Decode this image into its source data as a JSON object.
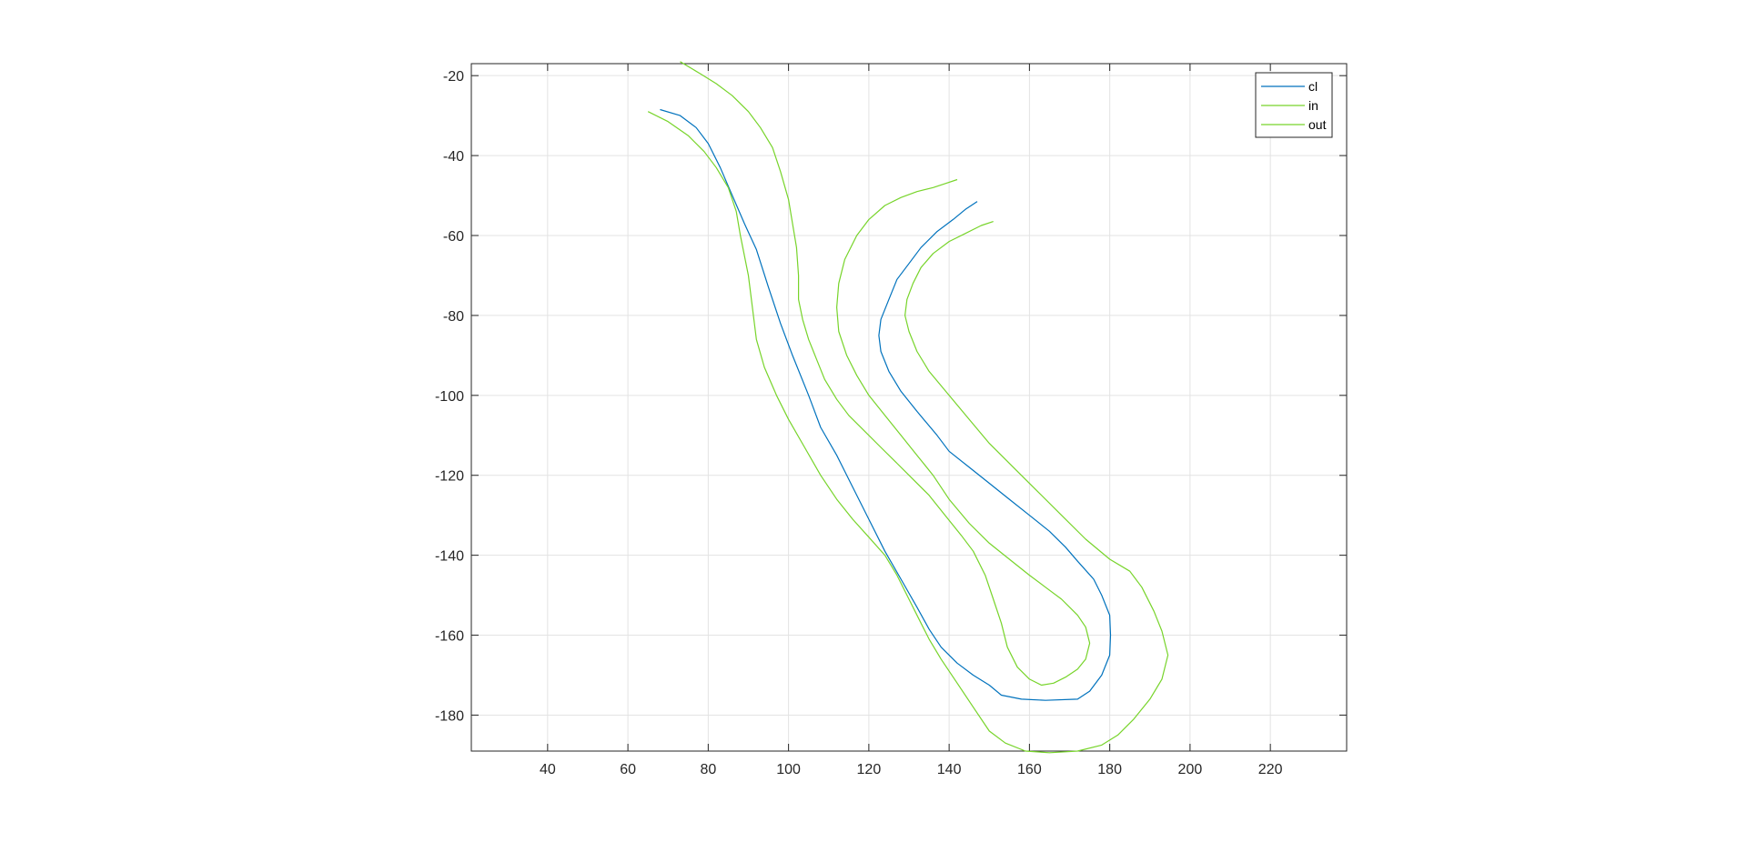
{
  "chart_data": {
    "type": "line",
    "title": "",
    "xlabel": "",
    "ylabel": "",
    "xlim": [
      21,
      239
    ],
    "ylim": [
      -189,
      -17
    ],
    "xticks": [
      40,
      60,
      80,
      100,
      120,
      140,
      160,
      180,
      200,
      220
    ],
    "yticks": [
      -20,
      -40,
      -60,
      -80,
      -100,
      -120,
      -140,
      -160,
      -180
    ],
    "grid": true,
    "legend_position": "top-right",
    "series": [
      {
        "name": "cl",
        "color": "#0072BD",
        "points": [
          [
            68,
            -28.5
          ],
          [
            73,
            -30
          ],
          [
            77,
            -33
          ],
          [
            80,
            -37
          ],
          [
            83,
            -43
          ],
          [
            86,
            -50
          ],
          [
            89,
            -57
          ],
          [
            92,
            -63.5
          ],
          [
            95,
            -73
          ],
          [
            98,
            -82
          ],
          [
            101,
            -90
          ],
          [
            105,
            -100
          ],
          [
            108,
            -108
          ],
          [
            112,
            -115
          ],
          [
            116,
            -123
          ],
          [
            120,
            -131
          ],
          [
            124,
            -139
          ],
          [
            128,
            -146
          ],
          [
            132,
            -153
          ],
          [
            135,
            -158.5
          ],
          [
            138,
            -163
          ],
          [
            142,
            -167
          ],
          [
            146,
            -170
          ],
          [
            150,
            -172.5
          ],
          [
            153,
            -175
          ],
          [
            158,
            -176
          ],
          [
            164,
            -176.3
          ],
          [
            172,
            -176
          ],
          [
            175,
            -174
          ],
          [
            178,
            -170
          ],
          [
            180,
            -165
          ],
          [
            180.2,
            -160
          ],
          [
            180,
            -155
          ],
          [
            178,
            -150
          ],
          [
            176,
            -146
          ],
          [
            172,
            -141.5
          ],
          [
            169,
            -138
          ],
          [
            165,
            -134
          ],
          [
            160,
            -130
          ],
          [
            155,
            -126
          ],
          [
            150,
            -122
          ],
          [
            145,
            -118
          ],
          [
            140,
            -114
          ],
          [
            137,
            -110
          ],
          [
            132,
            -104
          ],
          [
            128,
            -99
          ],
          [
            125,
            -94
          ],
          [
            123,
            -89
          ],
          [
            122.5,
            -85
          ],
          [
            123,
            -81
          ],
          [
            125,
            -76
          ],
          [
            127,
            -71
          ],
          [
            130,
            -67
          ],
          [
            133,
            -63
          ],
          [
            137,
            -59
          ],
          [
            141,
            -56
          ],
          [
            144,
            -53.5
          ],
          [
            147,
            -51.5
          ]
        ]
      },
      {
        "name": "in",
        "color": "#77D42A",
        "points": [
          [
            65,
            -29
          ],
          [
            70,
            -31.5
          ],
          [
            75,
            -35
          ],
          [
            79,
            -39
          ],
          [
            82,
            -43
          ],
          [
            85,
            -48
          ],
          [
            87,
            -54
          ],
          [
            88,
            -60
          ],
          [
            89,
            -65
          ],
          [
            90,
            -70
          ],
          [
            91,
            -78
          ],
          [
            92,
            -86
          ],
          [
            94,
            -93
          ],
          [
            97,
            -100
          ],
          [
            100,
            -106
          ],
          [
            104,
            -113
          ],
          [
            108,
            -120
          ],
          [
            112,
            -126
          ],
          [
            116,
            -131
          ],
          [
            120,
            -135.5
          ],
          [
            124,
            -140
          ],
          [
            127,
            -145
          ],
          [
            130,
            -151
          ],
          [
            133,
            -157
          ],
          [
            135,
            -161
          ],
          [
            138,
            -166
          ],
          [
            142,
            -172
          ],
          [
            146,
            -178
          ],
          [
            150,
            -184
          ],
          [
            154,
            -187
          ],
          [
            159,
            -189
          ],
          [
            165,
            -189.4
          ],
          [
            172,
            -189
          ],
          [
            178,
            -187.5
          ],
          [
            182,
            -185
          ],
          [
            186,
            -181
          ],
          [
            190,
            -176
          ],
          [
            193,
            -171
          ],
          [
            194.5,
            -165
          ],
          [
            193,
            -159
          ],
          [
            191,
            -154
          ],
          [
            188,
            -148
          ],
          [
            185,
            -144
          ],
          [
            180,
            -141
          ],
          [
            174,
            -136
          ],
          [
            168,
            -130
          ],
          [
            162,
            -124
          ],
          [
            156,
            -118
          ],
          [
            150,
            -112
          ],
          [
            145,
            -106
          ],
          [
            140,
            -100
          ],
          [
            135,
            -94
          ],
          [
            132,
            -89
          ],
          [
            130,
            -84
          ],
          [
            129,
            -80
          ],
          [
            129.5,
            -76
          ],
          [
            131,
            -72
          ],
          [
            133,
            -68
          ],
          [
            136,
            -64.5
          ],
          [
            140,
            -61.5
          ],
          [
            144,
            -59.5
          ],
          [
            148,
            -57.5
          ],
          [
            151,
            -56.5
          ]
        ]
      },
      {
        "name": "out",
        "color": "#77D42A",
        "points": [
          [
            73,
            -16.5
          ],
          [
            78,
            -19.5
          ],
          [
            82,
            -22
          ],
          [
            86,
            -25
          ],
          [
            90,
            -29
          ],
          [
            93,
            -33
          ],
          [
            96,
            -38
          ],
          [
            98,
            -44
          ],
          [
            100,
            -51
          ],
          [
            101,
            -57
          ],
          [
            102,
            -63
          ],
          [
            102.5,
            -70
          ],
          [
            102.5,
            -76
          ],
          [
            103.5,
            -81
          ],
          [
            105,
            -86
          ],
          [
            107,
            -91
          ],
          [
            109,
            -96
          ],
          [
            112,
            -101
          ],
          [
            115,
            -105
          ],
          [
            119,
            -109
          ],
          [
            123,
            -113
          ],
          [
            127,
            -117
          ],
          [
            131,
            -121
          ],
          [
            135,
            -125
          ],
          [
            139,
            -130
          ],
          [
            143,
            -135
          ],
          [
            146,
            -139
          ],
          [
            149,
            -145
          ],
          [
            151,
            -151
          ],
          [
            153,
            -157
          ],
          [
            154.5,
            -163
          ],
          [
            157,
            -168
          ],
          [
            160,
            -171
          ],
          [
            163,
            -172.5
          ],
          [
            166,
            -172
          ],
          [
            169,
            -170.5
          ],
          [
            172,
            -168.5
          ],
          [
            174,
            -166
          ],
          [
            175,
            -162
          ],
          [
            174,
            -158
          ],
          [
            172,
            -155
          ],
          [
            168,
            -151
          ],
          [
            164,
            -148
          ],
          [
            160,
            -145
          ],
          [
            155,
            -141
          ],
          [
            150,
            -137
          ],
          [
            145,
            -132
          ],
          [
            140,
            -126
          ],
          [
            136,
            -120
          ],
          [
            132,
            -115
          ],
          [
            128,
            -110
          ],
          [
            124,
            -105
          ],
          [
            120,
            -100
          ],
          [
            117,
            -95
          ],
          [
            114.5,
            -90
          ],
          [
            112.5,
            -84
          ],
          [
            112,
            -78
          ],
          [
            112.5,
            -72
          ],
          [
            114,
            -66
          ],
          [
            117,
            -60
          ],
          [
            120,
            -56
          ],
          [
            124,
            -52.5
          ],
          [
            128,
            -50.5
          ],
          [
            132,
            -49
          ],
          [
            136,
            -48
          ],
          [
            139,
            -47
          ],
          [
            142,
            -46
          ]
        ]
      }
    ]
  }
}
